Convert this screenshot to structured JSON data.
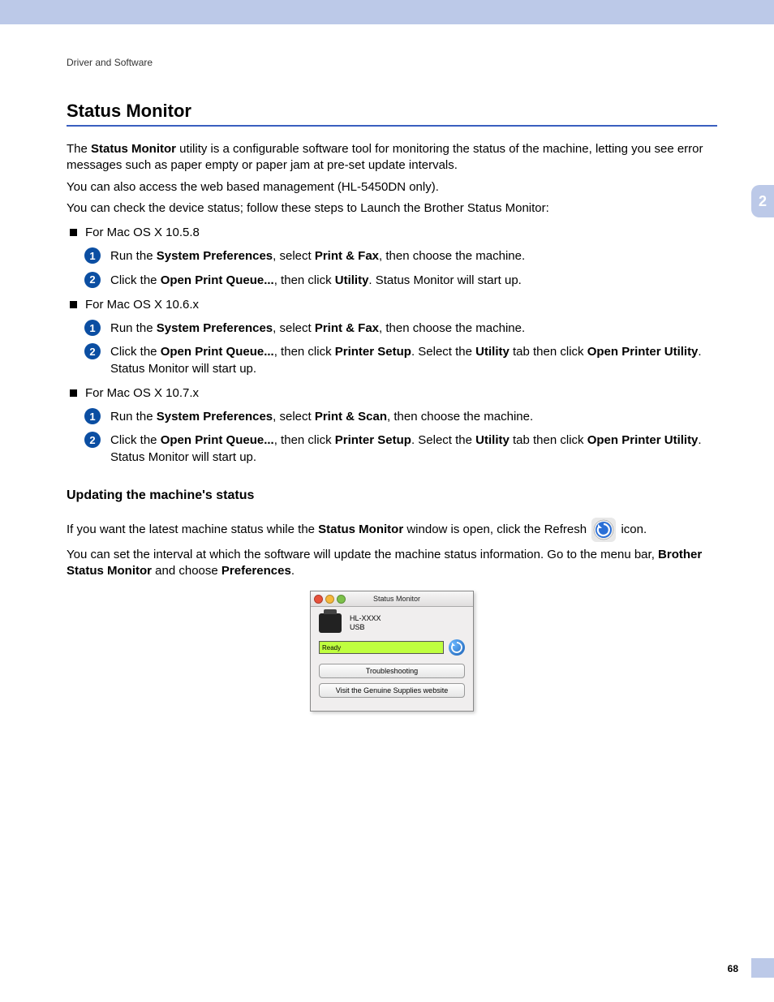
{
  "top_bar_color": "#bcc9e8",
  "breadcrumb": "Driver and Software",
  "chapter_tab": "2",
  "page_number": "68",
  "h1": "Status Monitor",
  "h1_rule_color": "#3a5fbf",
  "intro": {
    "p1_pre": "The ",
    "p1_bold": "Status Monitor",
    "p1_post": " utility is a configurable software tool for monitoring the status of the machine, letting you see error messages such as paper empty or paper jam at pre-set update intervals.",
    "p2": "You can also access the web based management (HL-5450DN only).",
    "p3": "You can check the device status; follow these steps to Launch the Brother Status Monitor:"
  },
  "sections": [
    {
      "label": "For Mac OS X 10.5.8",
      "steps": [
        {
          "n": "1",
          "runs": [
            {
              "t": "Run the "
            },
            {
              "t": "System Preferences",
              "b": true
            },
            {
              "t": ", select "
            },
            {
              "t": "Print & Fax",
              "b": true
            },
            {
              "t": ", then choose the machine."
            }
          ]
        },
        {
          "n": "2",
          "runs": [
            {
              "t": "Click the "
            },
            {
              "t": "Open Print Queue...",
              "b": true
            },
            {
              "t": ", then click "
            },
            {
              "t": "Utility",
              "b": true
            },
            {
              "t": ". Status Monitor will start up."
            }
          ]
        }
      ]
    },
    {
      "label": "For Mac OS X 10.6.x",
      "steps": [
        {
          "n": "1",
          "runs": [
            {
              "t": "Run the "
            },
            {
              "t": "System Preferences",
              "b": true
            },
            {
              "t": ", select "
            },
            {
              "t": "Print & Fax",
              "b": true
            },
            {
              "t": ", then choose the machine."
            }
          ]
        },
        {
          "n": "2",
          "runs": [
            {
              "t": "Click the "
            },
            {
              "t": "Open Print Queue...",
              "b": true
            },
            {
              "t": ", then click "
            },
            {
              "t": "Printer Setup",
              "b": true
            },
            {
              "t": ". Select the "
            },
            {
              "t": "Utility",
              "b": true
            },
            {
              "t": " tab then click "
            },
            {
              "t": "Open Printer Utility",
              "b": true
            },
            {
              "t": ". Status Monitor will start up."
            }
          ]
        }
      ]
    },
    {
      "label": "For Mac OS X 10.7.x",
      "steps": [
        {
          "n": "1",
          "runs": [
            {
              "t": "Run the "
            },
            {
              "t": "System Preferences",
              "b": true
            },
            {
              "t": ", select "
            },
            {
              "t": "Print & Scan",
              "b": true
            },
            {
              "t": ", then choose the machine."
            }
          ]
        },
        {
          "n": "2",
          "runs": [
            {
              "t": "Click the "
            },
            {
              "t": "Open Print Queue...",
              "b": true
            },
            {
              "t": ", then click "
            },
            {
              "t": "Printer Setup",
              "b": true
            },
            {
              "t": ". Select the "
            },
            {
              "t": "Utility",
              "b": true
            },
            {
              "t": " tab then click "
            },
            {
              "t": "Open Printer Utility",
              "b": true
            },
            {
              "t": ". Status Monitor will start up."
            }
          ]
        }
      ]
    }
  ],
  "h2": "Updating the machine's status",
  "update": {
    "p1_pre": "If you want the latest machine status while the ",
    "p1_bold": "Status Monitor",
    "p1_mid": " window is open, click the Refresh ",
    "p1_post": " icon.",
    "p2_pre": "You can set the interval at which the software will update the machine status information. Go to the menu bar, ",
    "p2_bold1": "Brother Status Monitor",
    "p2_mid": " and choose ",
    "p2_bold2": "Preferences",
    "p2_post": "."
  },
  "refresh_icon_colors": {
    "ring": "#2a6fd6",
    "bg1": "#e8e8e8"
  },
  "dialog": {
    "title": "Status Monitor",
    "traffic": {
      "close": "#e8513b",
      "min": "#f6b83c",
      "zoom": "#7cc14a"
    },
    "device_name": "HL-XXXX",
    "connection": "USB",
    "status_text": "Ready",
    "status_bg": "#bfff3f",
    "btn1": "Troubleshooting",
    "btn2": "Visit the Genuine Supplies website"
  }
}
